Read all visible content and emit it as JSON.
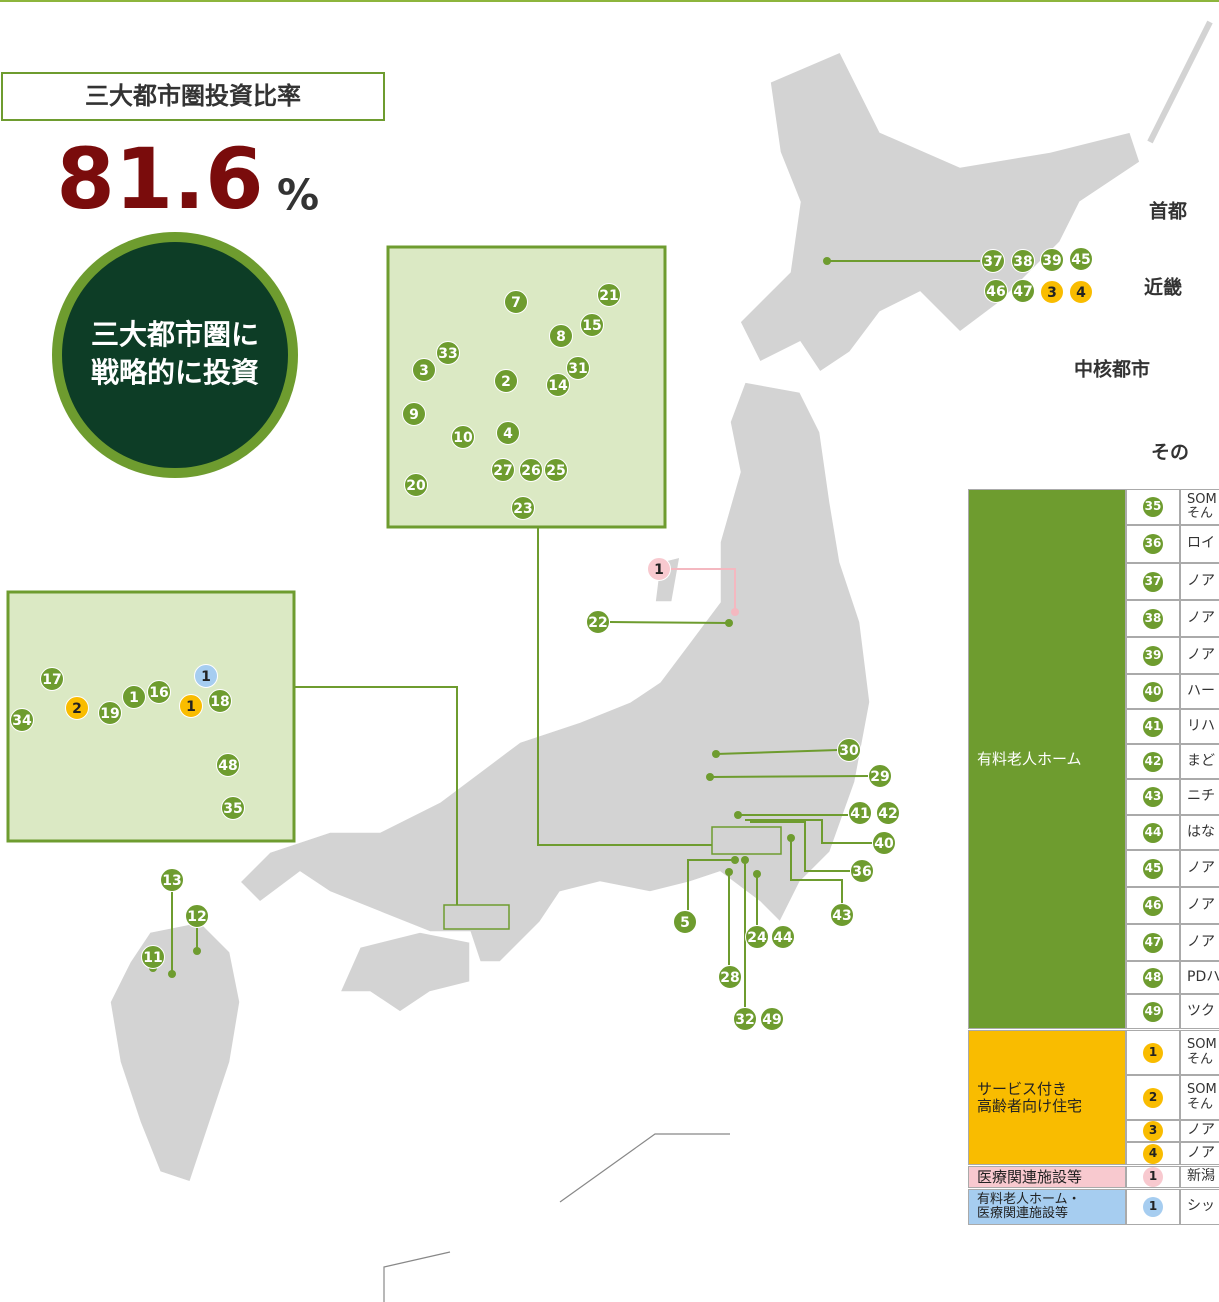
{
  "header": {
    "title": "三大都市圏投資比率",
    "ratio": "81.6",
    "unit": "%",
    "badge": [
      "三大都市圏に",
      "戦略的に投資"
    ]
  },
  "regions": [
    "首都",
    "近畿",
    "中核都市",
    "その"
  ],
  "map_markers": {
    "main": [
      {
        "color": "#6e9c2f",
        "text_color": "#ffffff",
        "labels": [
          "37",
          "38",
          "39",
          "45",
          "46",
          "47",
          "22",
          "30",
          "29",
          "41",
          "42",
          "40",
          "36",
          "43",
          "5",
          "24",
          "44",
          "28",
          "32",
          "49",
          "13",
          "12",
          "11"
        ]
      },
      {
        "color": "#f9bc00",
        "text_color": "#222222",
        "labels": [
          "3",
          "4"
        ]
      },
      {
        "color": "#f8c9cf",
        "text_color": "#222222",
        "labels": [
          "1"
        ]
      }
    ],
    "kanto": [
      {
        "color": "#6e9c2f",
        "text_color": "#ffffff",
        "labels": [
          "7",
          "21",
          "15",
          "8",
          "31",
          "33",
          "3",
          "2",
          "14",
          "9",
          "10",
          "4",
          "27",
          "26",
          "25",
          "20",
          "23"
        ]
      }
    ],
    "kinki": [
      {
        "color": "#6e9c2f",
        "text_color": "#ffffff",
        "labels": [
          "17",
          "19",
          "1",
          "16",
          "18",
          "34",
          "48",
          "35"
        ]
      },
      {
        "color": "#f9bc00",
        "text_color": "#222222",
        "labels": [
          "2",
          "1"
        ]
      },
      {
        "color": "#a6cdf0",
        "text_color": "#222222",
        "labels": [
          "1"
        ]
      }
    ]
  },
  "table": {
    "groups": [
      {
        "category": [
          "有料老人ホーム"
        ],
        "color": "#6e9c2f",
        "text_color": "#ffffff",
        "rows": [
          {
            "no": "35",
            "name": [
              "SOM",
              "そん"
            ]
          },
          {
            "no": "36",
            "name": [
              "ロイ"
            ]
          },
          {
            "no": "37",
            "name": [
              "ノア"
            ]
          },
          {
            "no": "38",
            "name": [
              "ノア"
            ]
          },
          {
            "no": "39",
            "name": [
              "ノア"
            ]
          },
          {
            "no": "40",
            "name": [
              "ハー"
            ]
          },
          {
            "no": "41",
            "name": [
              "リハ"
            ]
          },
          {
            "no": "42",
            "name": [
              "まど"
            ]
          },
          {
            "no": "43",
            "name": [
              "ニチ"
            ]
          },
          {
            "no": "44",
            "name": [
              "はな"
            ]
          },
          {
            "no": "45",
            "name": [
              "ノア"
            ]
          },
          {
            "no": "46",
            "name": [
              "ノア"
            ]
          },
          {
            "no": "47",
            "name": [
              "ノア"
            ]
          },
          {
            "no": "48",
            "name": [
              "PDハ"
            ]
          },
          {
            "no": "49",
            "name": [
              "ツク"
            ]
          }
        ]
      },
      {
        "category": [
          "サービス付き",
          "高齢者向け住宅"
        ],
        "color": "#f9bc00",
        "text_color": "#222222",
        "rows": [
          {
            "no": "1",
            "name": [
              "SOM",
              "そん"
            ]
          },
          {
            "no": "2",
            "name": [
              "SOM",
              "そん"
            ]
          },
          {
            "no": "3",
            "name": [
              "ノア"
            ]
          },
          {
            "no": "4",
            "name": [
              "ノア"
            ]
          }
        ]
      },
      {
        "category": [
          "医療関連施設等"
        ],
        "color": "#f8c9cf",
        "text_color": "#222222",
        "rows": [
          {
            "no": "1",
            "name": [
              "新潟"
            ]
          }
        ]
      },
      {
        "category": [
          "有料老人ホーム・",
          "医療関連施設等"
        ],
        "color": "#a6cdf0",
        "text_color": "#222222",
        "rows": [
          {
            "no": "1",
            "name": [
              "シッ"
            ]
          }
        ]
      }
    ]
  }
}
